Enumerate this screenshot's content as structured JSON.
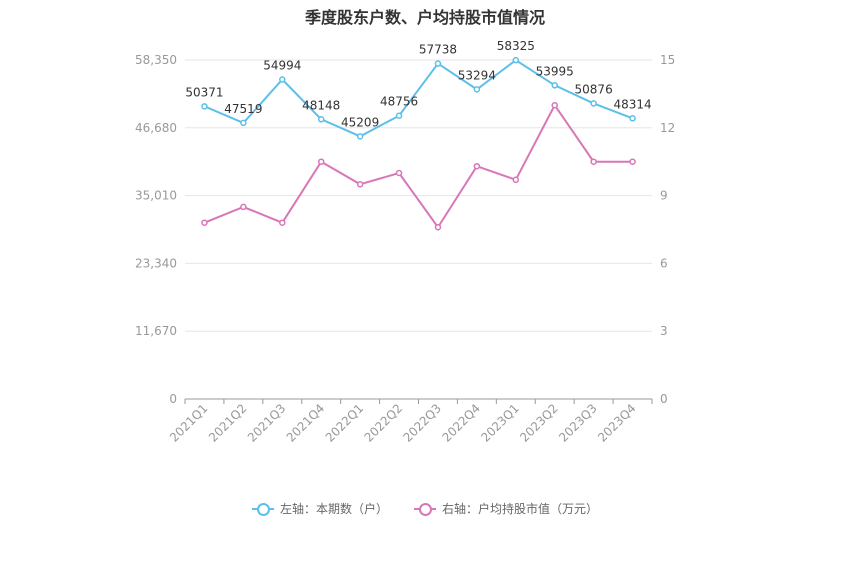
{
  "chart_data": {
    "type": "line",
    "title": "季度股东户数、户均持股市值情况",
    "categories": [
      "2021Q1",
      "2021Q2",
      "2021Q3",
      "2021Q4",
      "2022Q1",
      "2022Q2",
      "2022Q3",
      "2022Q4",
      "2023Q1",
      "2023Q2",
      "2023Q3",
      "2023Q4"
    ],
    "left_axis": {
      "ticks": [
        "0",
        "11,670",
        "23,340",
        "35,010",
        "46,680",
        "58,350"
      ],
      "ylim": [
        0,
        58350
      ]
    },
    "right_axis": {
      "ticks": [
        "0",
        "3",
        "6",
        "9",
        "12",
        "15"
      ],
      "ylim": [
        0,
        15
      ]
    },
    "series": [
      {
        "name": "左轴：本期数（户）",
        "axis": "left",
        "color": "#5bc0eb",
        "values": [
          50371,
          47519,
          54994,
          48148,
          45209,
          48756,
          57738,
          53294,
          58325,
          53995,
          50876,
          48314
        ],
        "labels": [
          "50371",
          "47519",
          "54994",
          "48148",
          "45209",
          "48756",
          "57738",
          "53294",
          "58325",
          "53995",
          "50876",
          "48314"
        ]
      },
      {
        "name": "右轴：户均持股市值（万元）",
        "axis": "right",
        "color": "#d877b8",
        "values": [
          7.8,
          8.5,
          7.8,
          10.5,
          9.5,
          10.0,
          7.6,
          10.3,
          9.7,
          13.0,
          10.5,
          10.5
        ]
      }
    ],
    "grid": true,
    "legend_position": "bottom"
  }
}
